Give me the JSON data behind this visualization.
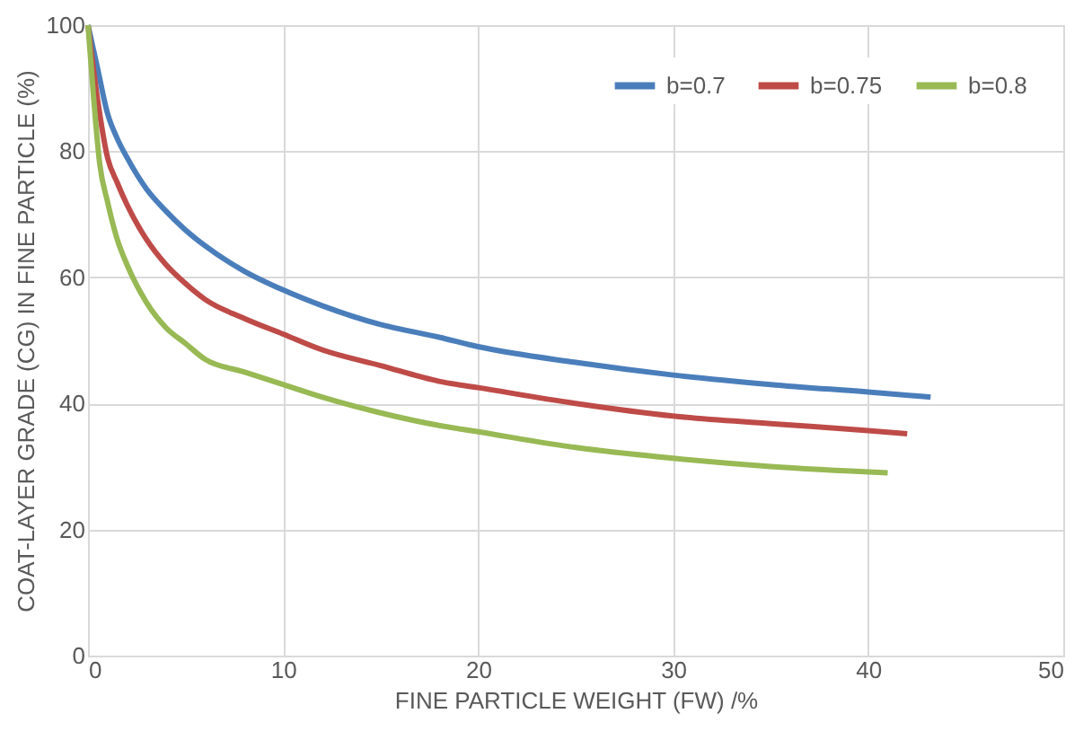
{
  "chart_data": {
    "type": "line",
    "xlabel": "FINE PARTICLE WEIGHT (FW) /%",
    "ylabel": "COAT-LAYER GRADE (CG) IN FINE PARTICLE (%)",
    "xlim": [
      0,
      50
    ],
    "xticks": [
      0,
      10,
      20,
      30,
      40,
      50
    ],
    "ylim": [
      0,
      100
    ],
    "yticks": [
      0,
      20,
      40,
      60,
      80,
      100
    ],
    "grid": true,
    "legend": "top right",
    "marker": "none",
    "line_style": "solid",
    "series": [
      {
        "name": "b=0.7",
        "color": "#4a7ebb",
        "x": [
          0,
          0.5,
          1,
          1.5,
          2,
          3,
          4,
          5,
          6,
          8,
          10,
          12,
          15,
          18,
          20,
          25,
          30,
          35,
          40,
          43.2
        ],
        "values": [
          100,
          93,
          86,
          82,
          79,
          74,
          70.5,
          67.5,
          65,
          61,
          58,
          55.5,
          52.5,
          50.5,
          49,
          46.5,
          44.5,
          43,
          41.8,
          41
        ]
      },
      {
        "name": "b=0.75",
        "color": "#be4b48",
        "x": [
          0,
          0.5,
          1,
          1.5,
          2,
          3,
          4,
          5,
          6,
          8,
          10,
          12,
          15,
          18,
          20,
          25,
          30,
          35,
          40,
          42
        ],
        "values": [
          100,
          88,
          79,
          75,
          71.5,
          66,
          62,
          59,
          56.5,
          53.5,
          51,
          48.5,
          46,
          43.5,
          42.5,
          40,
          38,
          36.8,
          35.7,
          35.2
        ]
      },
      {
        "name": "b=0.8",
        "color": "#98b954",
        "x": [
          0,
          0.3,
          0.6,
          1,
          1.5,
          2,
          3,
          4,
          5,
          6,
          8,
          10,
          12,
          15,
          18,
          20,
          25,
          30,
          35,
          41
        ],
        "values": [
          100,
          88,
          78,
          72,
          66,
          62,
          56,
          52,
          49.5,
          47,
          45,
          43,
          41,
          38.5,
          36.5,
          35.5,
          33,
          31.3,
          30,
          29
        ]
      }
    ]
  }
}
